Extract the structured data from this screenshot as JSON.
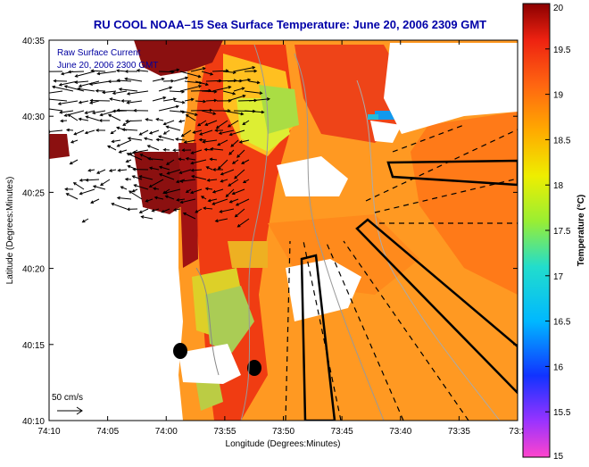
{
  "title": "RU COOL  NOAA–15  Sea Surface Temperature:  June 20, 2006 2309 GMT",
  "overlay": {
    "line1": "Raw Surface Current",
    "line2": "June 20, 2006 2300 GMT"
  },
  "scale_label": "50 cm/s",
  "axes": {
    "xlabel": "Longitude (Degrees:Minutes)",
    "ylabel": "Latitude (Degrees:Minutes)",
    "x_ticks": [
      "74:10",
      "74:05",
      "74:00",
      "73:55",
      "73:50",
      "73:45",
      "73:40",
      "73:35",
      "73:3"
    ],
    "y_ticks": [
      "40:35",
      "40:30",
      "40:25",
      "40:20",
      "40:15",
      "40:10"
    ]
  },
  "colorbar": {
    "label": "Temperature (°C)",
    "min": 15,
    "max": 20,
    "ticks": [
      "20",
      "19.5",
      "19",
      "18.5",
      "18",
      "17.5",
      "17",
      "16.5",
      "16",
      "15.5",
      "15"
    ]
  },
  "colors": {
    "title": "#0000a8",
    "land": "#ffffff",
    "coast_land": "#8b1010"
  }
}
